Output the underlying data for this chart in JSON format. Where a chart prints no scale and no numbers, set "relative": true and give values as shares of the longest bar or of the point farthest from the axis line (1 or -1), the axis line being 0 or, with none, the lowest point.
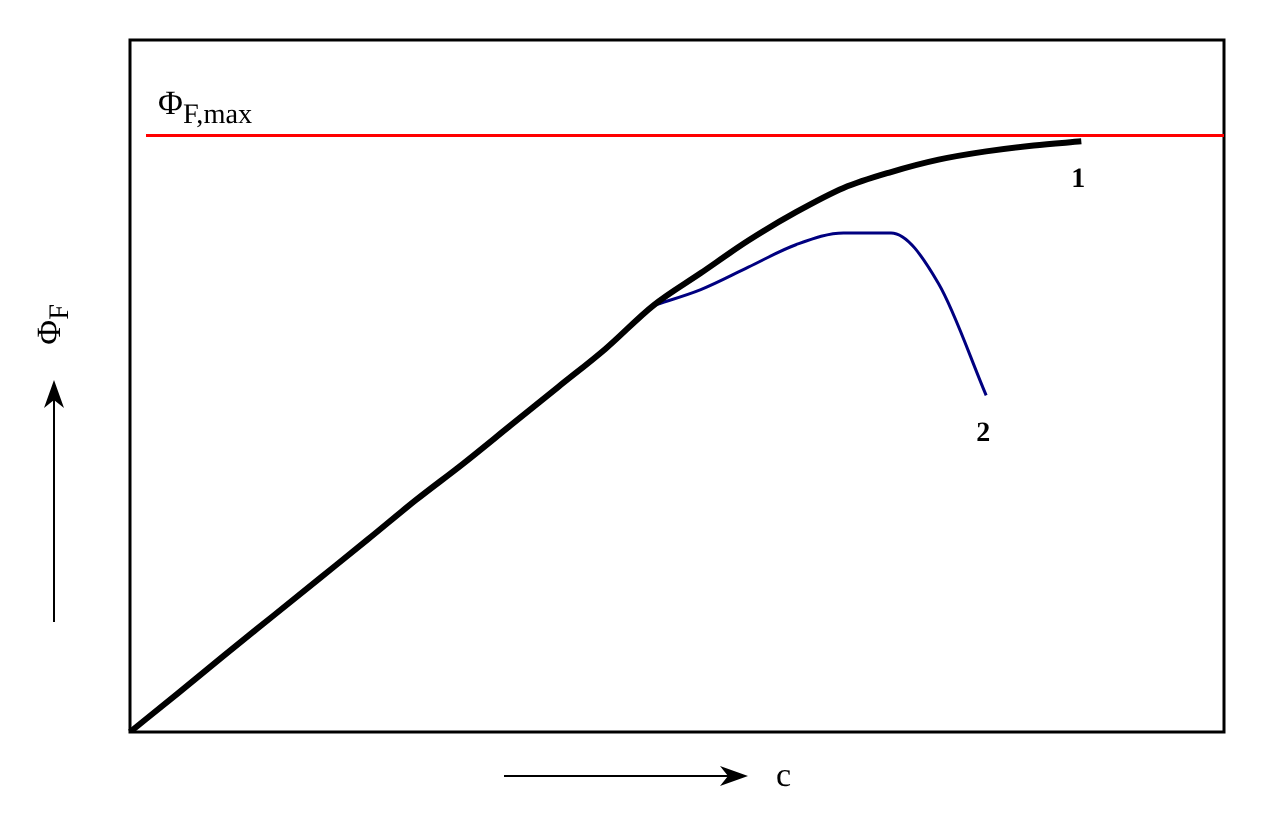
{
  "chart_data": {
    "type": "line",
    "relative": true,
    "xlabel": "c",
    "ylabel": "Φ$_{F}$",
    "marker": "none",
    "categories": [
      null,
      null,
      null,
      null,
      null,
      null,
      null,
      null,
      null,
      null,
      null,
      null,
      null,
      null,
      null,
      null,
      null,
      null,
      null,
      null,
      null,
      null,
      null,
      null
    ],
    "series": [
      {
        "name": "1",
        "color": "#000000",
        "values": [
          0,
          0.065,
          0.131,
          0.196,
          0.261,
          0.326,
          0.392,
          0.454,
          0.519,
          0.584,
          0.649,
          0.722,
          0.777,
          0.832,
          0.88,
          0.921,
          0.948,
          0.969,
          0.983,
          0.993,
          1,
          null,
          null,
          null
        ]
      },
      {
        "name": "2",
        "color": "#000080",
        "values": [
          null,
          null,
          null,
          null,
          null,
          null,
          null,
          null,
          null,
          null,
          null,
          0.722,
          0.749,
          0.787,
          0.825,
          0.845,
          0.845,
          0.759,
          0.57,
          null,
          null,
          null,
          null,
          null
        ]
      }
    ],
    "ref_lines": [
      {
        "axis": "y",
        "value": 1.01,
        "label": "Φ$_{F,max}$",
        "color": "#ff0000"
      }
    ]
  }
}
